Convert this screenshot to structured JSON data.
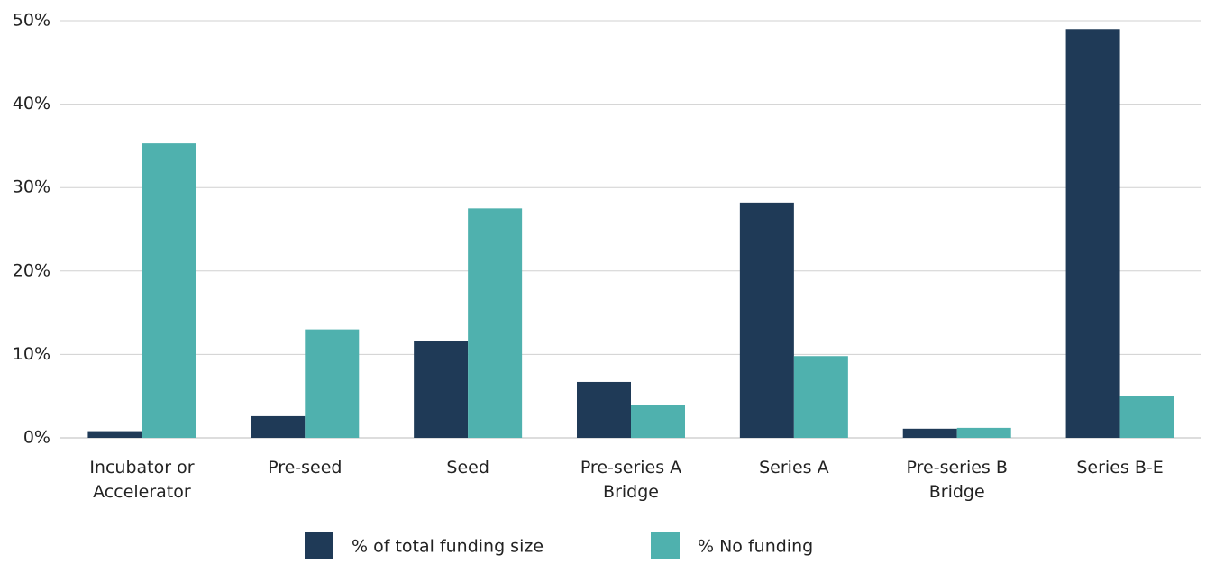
{
  "chart_data": {
    "type": "bar",
    "categories": [
      "Incubator or Accelerator",
      "Pre-seed",
      "Seed",
      "Pre-series A Bridge",
      "Series A",
      "Pre-series B Bridge",
      "Series B-E"
    ],
    "series": [
      {
        "name": "% of total funding size",
        "color": "#1f3a57",
        "values": [
          0.8,
          2.6,
          11.6,
          6.7,
          28.2,
          1.1,
          49.0
        ]
      },
      {
        "name": "% No funding",
        "color": "#4fb1ae",
        "values": [
          35.3,
          13.0,
          27.5,
          3.9,
          9.8,
          1.2,
          5.0
        ]
      }
    ],
    "ylim": [
      0,
      50
    ],
    "yticks": [
      {
        "value": 0,
        "label": "0%"
      },
      {
        "value": 10,
        "label": "10%"
      },
      {
        "value": 20,
        "label": "20%"
      },
      {
        "value": 30,
        "label": "30%"
      },
      {
        "value": 40,
        "label": "40%"
      },
      {
        "value": 50,
        "label": "50%"
      }
    ],
    "grid": true,
    "legend": "bottom"
  }
}
